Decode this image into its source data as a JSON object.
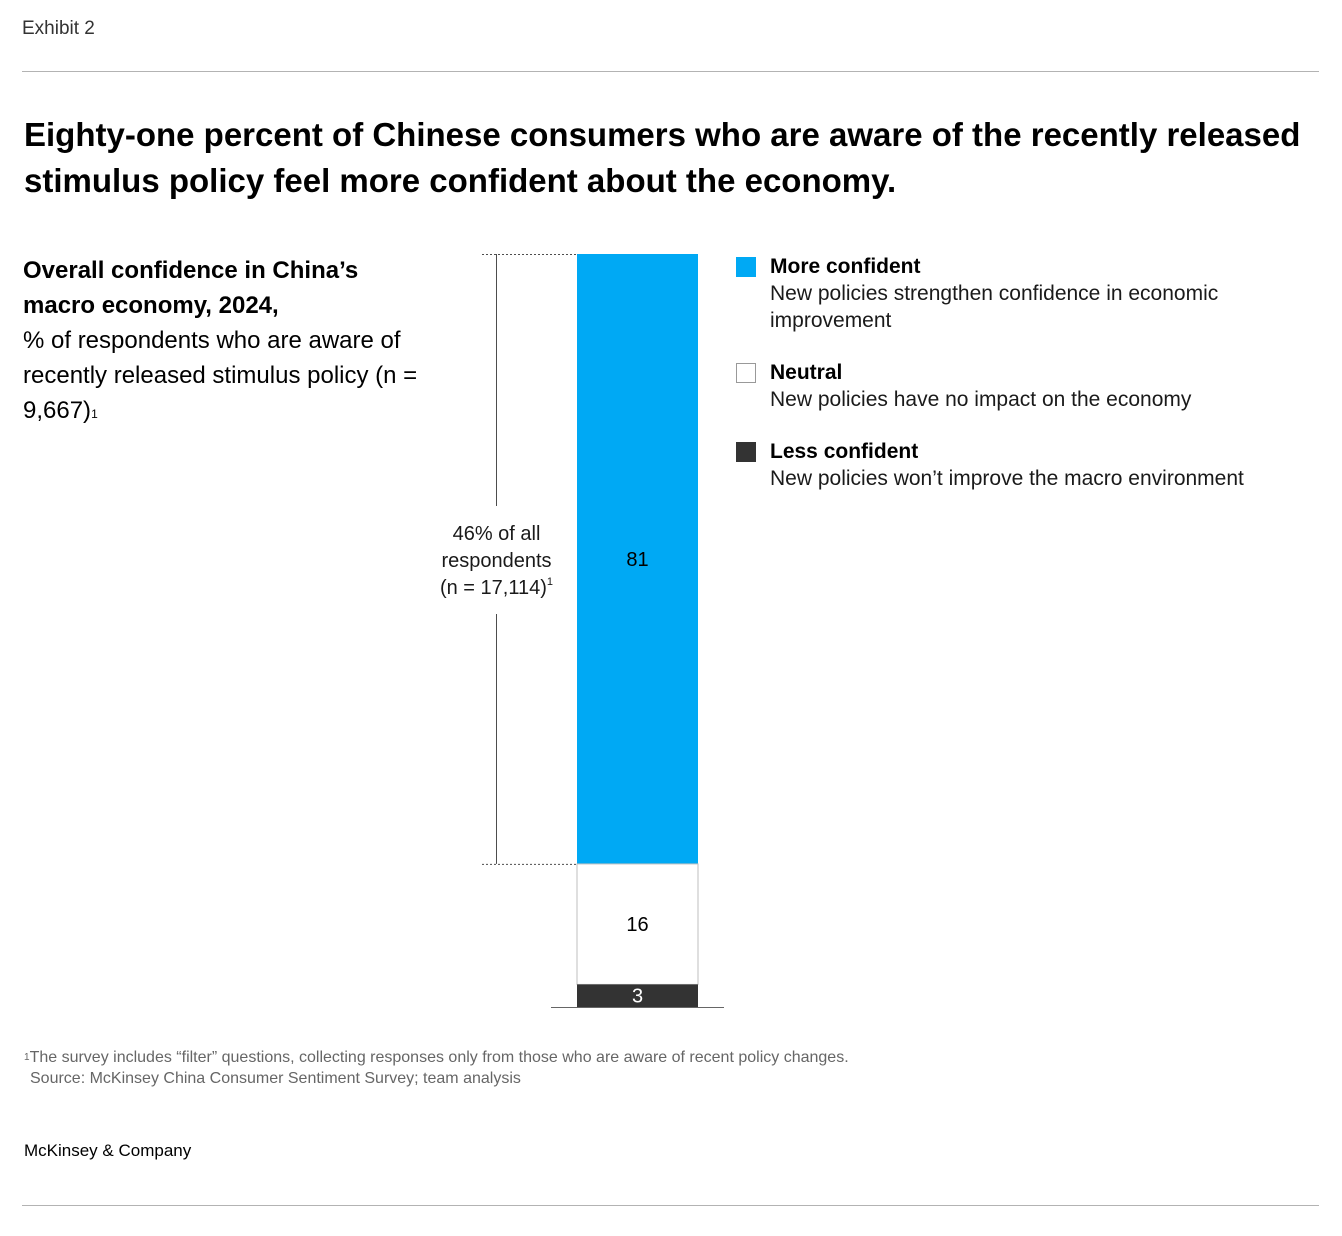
{
  "exhibit_label": "Exhibit 2",
  "title": "Eighty-one percent of Chinese consumers who are aware of the recently released stimulus policy feel more confident about the economy.",
  "subtitle": {
    "bold": "Overall confidence in China’s macro economy, 2024,",
    "regular": "% of respondents who are aware of recently released stimulus policy (n = 9,667)",
    "footnote_mark": "1"
  },
  "colors": {
    "more_confident": "#00A9F4",
    "neutral": "#FFFFFF",
    "less_confident": "#333333",
    "bracket": "#4d4d4d"
  },
  "chart_data": {
    "type": "bar",
    "stacked": true,
    "orientation": "vertical",
    "unit": "% of respondents",
    "segments": [
      {
        "name": "More confident",
        "value": 81
      },
      {
        "name": "Neutral",
        "value": 16
      },
      {
        "name": "Less confident",
        "value": 3
      }
    ],
    "annotation": {
      "lines": [
        "46% of all",
        "respondents",
        "(n = 17,114)"
      ],
      "footnote_mark": "1",
      "spans_segment": "More confident"
    }
  },
  "legend": [
    {
      "name": "More confident",
      "description": "New policies strengthen confidence in economic improvement",
      "color": "#00A9F4"
    },
    {
      "name": "Neutral",
      "description": "New policies have no impact on the economy",
      "color": "#FFFFFF"
    },
    {
      "name": "Less confident",
      "description": "New policies won’t improve the macro environment",
      "color": "#333333"
    }
  ],
  "footnote": {
    "mark": "1",
    "text": "The survey includes “filter” questions, collecting responses only from those who are aware of recent policy changes.",
    "source": "Source: McKinsey China Consumer Sentiment Survey; team analysis"
  },
  "brand": "McKinsey & Company"
}
